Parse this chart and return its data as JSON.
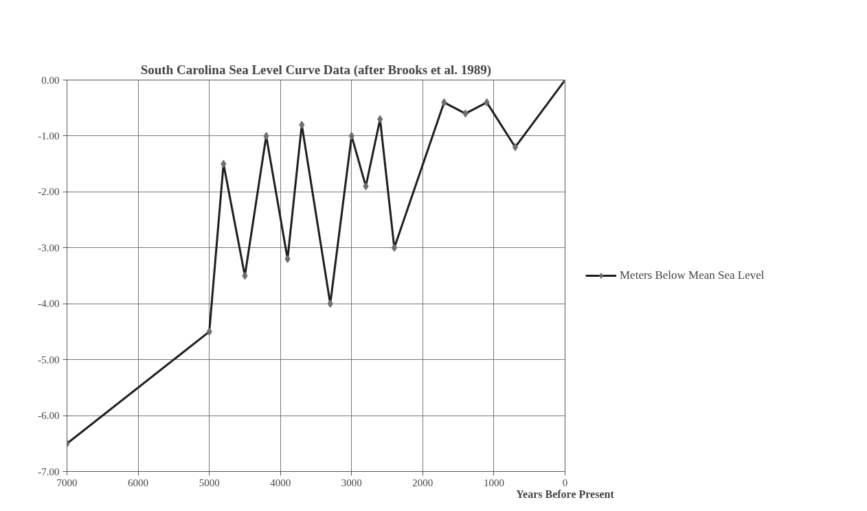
{
  "chart_data": {
    "type": "line",
    "title": "South Carolina Sea Level Curve Data (after Brooks et al. 1989)",
    "xlabel": "Years Before Present",
    "x": [
      7000,
      5000,
      4800,
      4500,
      4200,
      3900,
      3700,
      3300,
      3000,
      2800,
      2600,
      2400,
      1700,
      1400,
      1100,
      700,
      0
    ],
    "series": [
      {
        "name": "Meters Below Mean Sea Level",
        "color": "#1e1e1e",
        "values": [
          -6.5,
          -4.5,
          -1.5,
          -3.5,
          -1.0,
          -3.2,
          -0.8,
          -4.0,
          -1.0,
          -1.9,
          -0.7,
          -3.0,
          -0.4,
          -0.6,
          -0.4,
          -1.2,
          0.0
        ]
      }
    ],
    "xlim": [
      7000,
      0
    ],
    "xticks": [
      7000,
      6000,
      5000,
      4000,
      3000,
      2000,
      1000,
      0
    ],
    "ylim": [
      -7,
      0
    ],
    "yticks": [
      {
        "value": 0,
        "label": "0.00"
      },
      {
        "value": -1,
        "label": "-1.00"
      },
      {
        "value": -2,
        "label": "-2.00"
      },
      {
        "value": -3,
        "label": "-3.00"
      },
      {
        "value": -4,
        "label": "-4.00"
      },
      {
        "value": -5,
        "label": "-5.00"
      },
      {
        "value": -6,
        "label": "-6.00"
      },
      {
        "value": -7,
        "label": "-7.00"
      }
    ],
    "grid": true,
    "legend": "right",
    "marker": "diamond",
    "line_style": "solid"
  }
}
